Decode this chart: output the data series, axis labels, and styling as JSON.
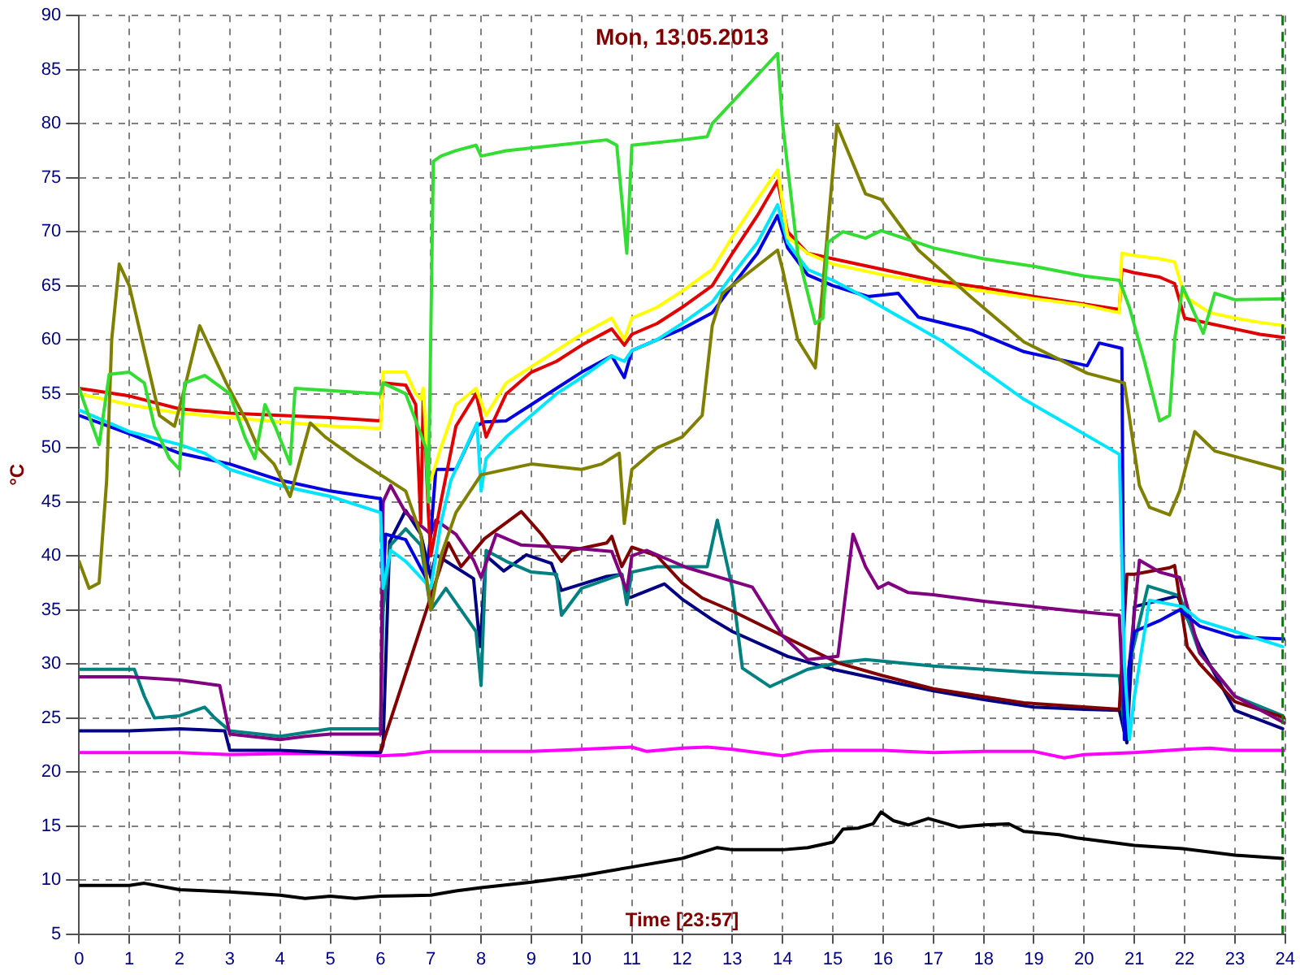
{
  "chart_data": {
    "type": "line",
    "title": "Mon, 13.05.2013",
    "xlabel": "Time [23:57]",
    "ylabel": "°C",
    "xlim": [
      0,
      24
    ],
    "xticks": [
      0,
      1,
      2,
      3,
      4,
      5,
      6,
      7,
      8,
      9,
      10,
      11,
      12,
      13,
      14,
      15,
      16,
      17,
      18,
      19,
      20,
      21,
      22,
      23,
      24
    ],
    "ylim": [
      5,
      90
    ],
    "yticks": [
      5,
      10,
      15,
      20,
      25,
      30,
      35,
      40,
      45,
      50,
      55,
      60,
      65,
      70,
      75,
      80,
      85,
      90
    ],
    "grid": true,
    "legend": false,
    "marker": "none",
    "line_style": "solid",
    "ref_lines": [
      {
        "axis": "x",
        "value": 23.95,
        "color": "#008000",
        "line_style": "dashed"
      }
    ],
    "series": [
      {
        "color": "#33dd33",
        "x": [
          0,
          0.4,
          0.6,
          1.0,
          1.3,
          1.5,
          1.8,
          2.0,
          2.1,
          2.5,
          3.0,
          3.3,
          3.5,
          3.7,
          3.9,
          4.2,
          4.3,
          5,
          6.0,
          6.05,
          6.5,
          6.9,
          6.95,
          7.05,
          7.2,
          7.5,
          7.9,
          8.0,
          8.5,
          9.5,
          10.5,
          10.7,
          10.9,
          11.0,
          12,
          12.5,
          12.6,
          13.2,
          13.9,
          14.0,
          14.3,
          14.65,
          14.8,
          14.9,
          15.2,
          15.65,
          15.96,
          17,
          18,
          19,
          20,
          20.7,
          20.9,
          21.2,
          21.5,
          21.7,
          21.8,
          21.96,
          22.37,
          22.6,
          23,
          24
        ],
        "values": [
          55.5,
          50.3,
          56.8,
          57,
          56,
          52,
          49,
          48,
          56,
          56.7,
          55,
          51,
          49,
          54,
          52,
          48.5,
          55.5,
          55.3,
          55,
          56,
          55,
          50,
          45,
          76.5,
          77,
          77.5,
          78,
          77,
          77.5,
          78,
          78.5,
          78,
          68,
          78,
          78.5,
          78.8,
          80,
          83,
          86.5,
          80,
          68,
          61.5,
          62,
          69,
          70,
          69.4,
          70.1,
          68.5,
          67.5,
          66.8,
          65.9,
          65.5,
          63,
          58,
          52.5,
          53,
          60,
          64.9,
          60.6,
          64.3,
          63.7,
          63.8
        ]
      },
      {
        "color": "#808000",
        "x": [
          0,
          0.2,
          0.4,
          0.55,
          0.65,
          0.8,
          1.0,
          1.4,
          1.6,
          1.9,
          2.1,
          2.4,
          2.93,
          3.34,
          3.56,
          3.88,
          4.2,
          4.6,
          4.9,
          5.5,
          6.0,
          6.5,
          6.8,
          7.0,
          7.2,
          7.5,
          8.0,
          9,
          10,
          10.4,
          10.75,
          10.85,
          11.0,
          11.5,
          12,
          12.4,
          12.6,
          12.8,
          13.9,
          14.0,
          14.3,
          14.65,
          14.8,
          15.08,
          15.65,
          15.96,
          16.7,
          17.76,
          18.8,
          20.06,
          20.8,
          21.1,
          21.3,
          21.7,
          21.9,
          22.2,
          22.6,
          23.95
        ],
        "values": [
          39.5,
          37,
          37.5,
          47,
          60,
          67,
          65,
          57,
          53,
          52,
          55.5,
          61.3,
          56,
          52.4,
          50,
          48.5,
          45.5,
          52.3,
          51,
          49,
          47.5,
          46,
          42,
          35,
          40,
          44,
          47.5,
          48.5,
          48,
          48.5,
          49.5,
          43,
          48,
          50,
          51,
          53,
          61.3,
          64.3,
          68.3,
          66.5,
          60,
          57.4,
          65,
          79.9,
          73.5,
          73,
          68.3,
          63.9,
          59.8,
          56.9,
          56,
          46.5,
          44.5,
          43.8,
          46,
          51.5,
          49.7,
          48
        ]
      },
      {
        "color": "#ffff00",
        "x": [
          0,
          1,
          2,
          3,
          4,
          5,
          6.0,
          6.05,
          6.5,
          6.7,
          6.8,
          6.85,
          6.95,
          7.0,
          7.2,
          7.5,
          7.9,
          8.1,
          8.5,
          9,
          9.5,
          10,
          10.6,
          10.85,
          11,
          11.5,
          12,
          12.6,
          13,
          13.5,
          13.9,
          14.1,
          14.5,
          15,
          16,
          17,
          18,
          19,
          20,
          20.7,
          20.75,
          21,
          21.5,
          21.8,
          22.0,
          22.5,
          23,
          23.5,
          24
        ],
        "values": [
          55,
          54,
          53.2,
          52.8,
          52.4,
          52,
          51.8,
          57,
          57,
          55,
          54.5,
          55.5,
          47,
          47,
          50,
          54,
          55.5,
          53,
          56,
          57.5,
          59,
          60.5,
          62,
          60,
          62,
          63,
          64.5,
          66.5,
          69.5,
          73,
          75.7,
          69.5,
          68,
          67,
          66,
          65.2,
          64.5,
          63.8,
          63.2,
          62.5,
          68,
          67.8,
          67.5,
          67.2,
          64,
          62.5,
          62,
          61.6,
          61.3
        ]
      },
      {
        "color": "#e00000",
        "x": [
          0,
          1,
          2,
          3,
          4,
          5,
          6.0,
          6.05,
          6.5,
          6.7,
          6.8,
          6.85,
          6.95,
          7.0,
          7.2,
          7.5,
          7.9,
          8.1,
          8.5,
          9,
          9.5,
          10,
          10.6,
          10.85,
          11,
          11.5,
          12,
          12.6,
          13,
          13.5,
          13.9,
          14.1,
          14.5,
          15,
          16,
          17,
          18,
          19,
          20,
          20.7,
          20.75,
          21,
          21.5,
          21.8,
          22.0,
          22.5,
          23,
          23.5,
          24
        ],
        "values": [
          55.5,
          54.8,
          53.6,
          53.2,
          53,
          52.8,
          52.5,
          56,
          55.8,
          54,
          43,
          55,
          44,
          40,
          45,
          52,
          55,
          51,
          55,
          57,
          58,
          59.5,
          61,
          59.5,
          60.5,
          61.5,
          63,
          65,
          68,
          71.5,
          74.7,
          70,
          68,
          67.5,
          66.5,
          65.5,
          64.8,
          64,
          63.3,
          62.8,
          66.5,
          66.2,
          65.8,
          65.2,
          62,
          61.5,
          61,
          60.5,
          60.2
        ]
      },
      {
        "color": "#00e5ff",
        "x": [
          0,
          1,
          2,
          2.5,
          3,
          4,
          5,
          6.0,
          6.05,
          6.2,
          6.5,
          7.0,
          7.2,
          7.4,
          7.92,
          8.0,
          8.1,
          8.5,
          9,
          9.5,
          10,
          10.6,
          10.85,
          11,
          11.5,
          12,
          12.6,
          13,
          13.5,
          13.9,
          14.1,
          14.5,
          15,
          15.65,
          17.2,
          18.8,
          20.7,
          20.8,
          20.9,
          21.0,
          21.3,
          21.96,
          22.3,
          23,
          23.95
        ],
        "values": [
          53.5,
          51.5,
          50.3,
          49.5,
          48,
          46.5,
          45.5,
          44,
          37,
          40.5,
          39.5,
          37,
          43,
          47,
          52.3,
          46,
          49,
          51,
          53,
          55,
          56.5,
          58.5,
          58,
          59,
          60,
          61.5,
          63.5,
          66,
          69,
          72.5,
          69,
          66.5,
          65.5,
          63.9,
          59.8,
          54.5,
          49.4,
          30,
          23,
          27,
          35.9,
          35.3,
          34,
          33,
          31.6
        ]
      },
      {
        "color": "#0000e0",
        "x": [
          0,
          1,
          2,
          3,
          4,
          5,
          6.0,
          6.05,
          6.1,
          6.5,
          6.9,
          7.0,
          7.1,
          7.5,
          7.9,
          8.07,
          8.5,
          9,
          9.5,
          10,
          10.6,
          10.85,
          11,
          11.5,
          12,
          12.6,
          13,
          13.5,
          13.9,
          14.1,
          14.5,
          15,
          15.7,
          16.3,
          16.7,
          17.76,
          18.8,
          20.06,
          20.3,
          20.75,
          20.8,
          20.9,
          21.0,
          21.5,
          21.9,
          22.3,
          23,
          24
        ],
        "values": [
          53,
          51.3,
          49.5,
          48.5,
          47,
          46,
          45.3,
          37,
          42,
          41.5,
          38,
          42,
          48,
          48,
          52,
          52.4,
          52.5,
          54,
          55.5,
          57,
          58.5,
          56.5,
          59,
          60,
          61,
          62.5,
          65,
          68,
          71.5,
          68.5,
          66,
          65,
          64,
          64.3,
          62.1,
          60.9,
          58.9,
          57.6,
          59.7,
          59.2,
          23,
          30,
          33,
          34,
          35,
          33.5,
          32.5,
          32.3
        ]
      },
      {
        "color": "#800080",
        "x": [
          0,
          1,
          2,
          2.8,
          3.0,
          4,
          4.5,
          5,
          6.0,
          6.05,
          6.2,
          6.5,
          7.0,
          7.1,
          7.5,
          7.85,
          8.0,
          8.3,
          8.8,
          9.65,
          10.6,
          10.9,
          11.0,
          11.3,
          12.1,
          13.4,
          14.0,
          14.5,
          15.1,
          15.4,
          15.65,
          15.9,
          16.1,
          16.5,
          17,
          18,
          19,
          20,
          20.7,
          20.8,
          20.9,
          21.1,
          21.5,
          21.9,
          22.3,
          23,
          24
        ],
        "values": [
          28.8,
          28.8,
          28.5,
          28,
          23.5,
          23,
          23.3,
          23.5,
          23.5,
          45,
          46.5,
          44,
          42,
          43.3,
          42,
          39.6,
          38,
          42,
          41,
          40.8,
          40.4,
          36.8,
          40,
          40.5,
          38.9,
          37.1,
          32.6,
          30.4,
          30.7,
          42,
          39,
          37,
          37.5,
          36.6,
          36.4,
          35.8,
          35.3,
          34.8,
          34.5,
          24,
          30,
          39.6,
          38.5,
          38,
          31,
          27,
          24.5
        ]
      },
      {
        "color": "#800000",
        "x": [
          6.0,
          7.35,
          7.6,
          8.07,
          8.8,
          9.2,
          9.6,
          9.8,
          10.5,
          10.6,
          10.8,
          11.0,
          11.5,
          12.0,
          12.4,
          13.0,
          14.0,
          15.1,
          16,
          17,
          18.8,
          20.7,
          20.85,
          21.0,
          21.7,
          21.8,
          22.05,
          22.3,
          23,
          24
        ],
        "values": [
          22,
          41.2,
          39,
          41.6,
          44.1,
          42,
          39.5,
          40.5,
          41.2,
          41.8,
          39,
          40.8,
          40,
          37.5,
          36.1,
          34.9,
          32.6,
          30.1,
          28.9,
          27.7,
          26.4,
          25.8,
          38.3,
          38.3,
          38.9,
          39.1,
          31.6,
          30,
          26.5,
          25
        ]
      },
      {
        "color": "#008080",
        "x": [
          0,
          1.1,
          1.3,
          1.5,
          2,
          2.5,
          2.7,
          3,
          4,
          5,
          6.0,
          6.05,
          6.2,
          6.5,
          6.8,
          7.0,
          7.3,
          7.9,
          8.0,
          8.1,
          8.5,
          9,
          9.5,
          9.6,
          10,
          10.8,
          10.9,
          11.0,
          11.5,
          12.5,
          12.7,
          13.0,
          13.2,
          13.75,
          14.5,
          15.1,
          15.65,
          17,
          19,
          20.7,
          20.8,
          20.9,
          21.27,
          21.9,
          22.3,
          23,
          23.95
        ],
        "values": [
          29.5,
          29.5,
          27,
          25,
          25.2,
          26,
          25,
          23.8,
          23.3,
          24,
          24,
          35,
          41,
          42.5,
          41,
          35,
          37,
          33,
          28,
          40.5,
          39.5,
          38.5,
          38.3,
          34.5,
          37,
          38.3,
          35.5,
          38.5,
          39,
          39,
          43.3,
          37,
          29.6,
          27.9,
          29.5,
          30.1,
          30.4,
          29.8,
          29.2,
          28.9,
          24,
          30,
          37.2,
          36.3,
          31,
          27,
          25.2
        ]
      },
      {
        "color": "#000080",
        "x": [
          0,
          1,
          2,
          2.9,
          3.0,
          4,
          5,
          6.0,
          6.05,
          6.18,
          6.5,
          6.8,
          7.0,
          7.1,
          7.85,
          7.98,
          8.1,
          8.45,
          8.9,
          9.4,
          9.6,
          10.5,
          10.8,
          10.9,
          11.0,
          11.65,
          12.0,
          12.6,
          13.0,
          14.1,
          15,
          16,
          17,
          18,
          19,
          20,
          20.7,
          20.85,
          21.0,
          21.86,
          22.3,
          23,
          23.95
        ],
        "values": [
          23.8,
          23.8,
          24,
          23.8,
          22,
          22,
          21.8,
          21.8,
          22.5,
          41.3,
          44.2,
          42,
          38,
          40.1,
          37.9,
          31.6,
          40,
          38.6,
          40.1,
          39.3,
          36.8,
          38.1,
          38.3,
          36.1,
          36.2,
          37.4,
          36,
          34.1,
          33,
          30.7,
          29.5,
          28.5,
          27.5,
          26.7,
          26,
          25.8,
          25.7,
          22.7,
          35.3,
          36.3,
          31.6,
          25.7,
          24
        ]
      },
      {
        "color": "#ff00ff",
        "x": [
          0,
          1,
          2,
          3,
          4,
          5,
          6,
          6.5,
          7,
          8,
          9,
          10,
          11,
          11.3,
          12,
          12.5,
          13,
          14,
          14.5,
          15,
          16,
          17,
          18,
          19,
          19.6,
          20,
          21,
          22,
          22.5,
          23,
          24
        ],
        "values": [
          21.8,
          21.8,
          21.8,
          21.6,
          21.7,
          21.7,
          21.5,
          21.6,
          21.9,
          21.9,
          21.9,
          22.1,
          22.3,
          21.9,
          22.2,
          22.3,
          22.1,
          21.5,
          21.9,
          22,
          22,
          21.8,
          21.9,
          21.9,
          21.3,
          21.6,
          21.8,
          22.1,
          22.2,
          22,
          22
        ]
      },
      {
        "color": "#000000",
        "x": [
          0,
          1,
          1.3,
          2,
          3,
          4,
          4.5,
          5,
          5.5,
          6,
          7,
          7.5,
          8,
          9,
          10,
          11,
          12,
          12.7,
          13,
          14,
          14.5,
          15,
          15.2,
          15.5,
          15.8,
          15.96,
          16.2,
          16.5,
          16.9,
          17.5,
          18,
          18.5,
          18.8,
          19.5,
          19.85,
          21,
          21.96,
          23,
          23.95
        ],
        "values": [
          9.5,
          9.5,
          9.7,
          9.1,
          8.9,
          8.6,
          8.3,
          8.5,
          8.3,
          8.5,
          8.6,
          9,
          9.3,
          9.8,
          10.4,
          11.2,
          12,
          13,
          12.8,
          12.8,
          13,
          13.5,
          14.7,
          14.8,
          15.2,
          16.3,
          15.5,
          15.1,
          15.7,
          14.9,
          15.1,
          15.2,
          14.5,
          14.2,
          13.9,
          13.2,
          12.9,
          12.3,
          12
        ]
      }
    ]
  }
}
